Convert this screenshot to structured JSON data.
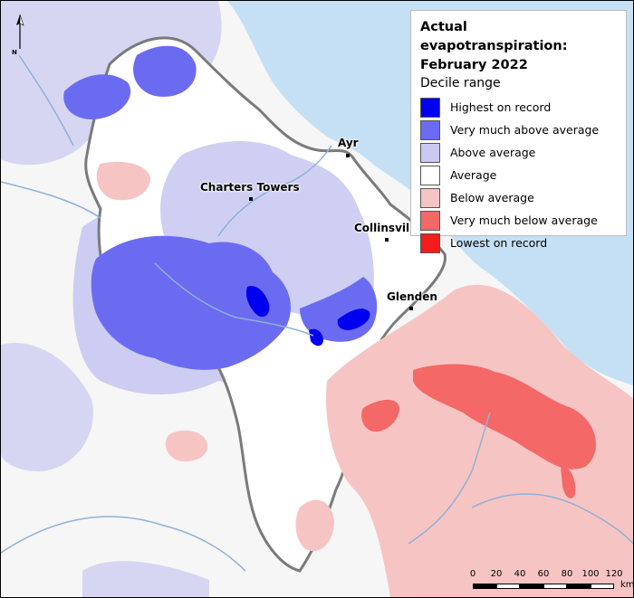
{
  "legend": {
    "title_line1": "Actual evapotranspiration:",
    "title_line2": "February 2022",
    "subtitle": "Decile range",
    "items": [
      {
        "label": "Highest on record",
        "color": "#0000f0"
      },
      {
        "label": "Very much above average",
        "color": "#6b6bf5"
      },
      {
        "label": "Above average",
        "color": "#c9c9f2"
      },
      {
        "label": "Average",
        "color": "#ffffff"
      },
      {
        "label": "Below average",
        "color": "#f7c4c4"
      },
      {
        "label": "Very much below average",
        "color": "#f46868"
      },
      {
        "label": "Lowest on record",
        "color": "#f41c1c"
      }
    ]
  },
  "places": [
    {
      "name": "Ayr"
    },
    {
      "name": "Charters Towers"
    },
    {
      "name": "Collinsvil"
    },
    {
      "name": "Glenden"
    }
  ],
  "north_arrow": {
    "label": "N"
  },
  "scale_bar": {
    "ticks": [
      "0",
      "20",
      "40",
      "60",
      "80",
      "100",
      "120"
    ],
    "unit": "km"
  },
  "colors": {
    "ocean": "#c5e0f5",
    "land": "#f6f6f6",
    "rivers": "#8fb0d8"
  }
}
